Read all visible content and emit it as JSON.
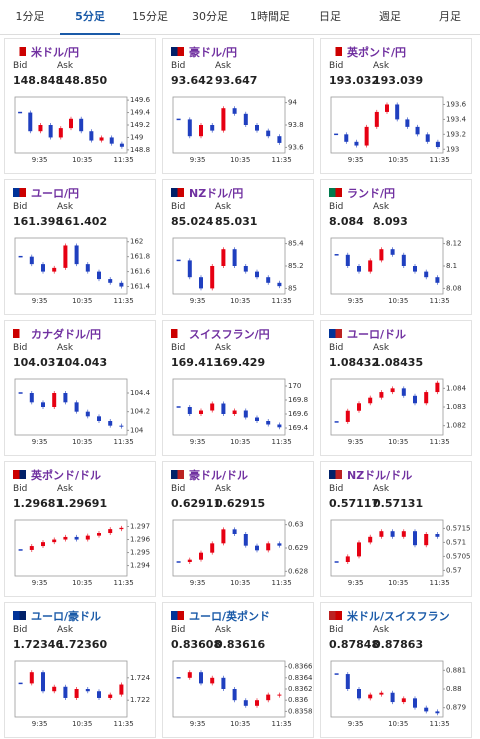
{
  "tabs": [
    "1分足",
    "5分足",
    "15分足",
    "30分足",
    "1時間足",
    "日足",
    "週足",
    "月足"
  ],
  "selected_tab": 1,
  "labels": {
    "bid": "Bid",
    "ask": "Ask"
  },
  "cards": [
    {
      "title": "米ドル/円",
      "title_color": "#7030a0",
      "bid": "148.848",
      "ask": "148.850",
      "chart": {
        "type": "candlestick",
        "closes": [
          149.4,
          149.1,
          149.2,
          149.0,
          149.15,
          149.3,
          149.1,
          148.95,
          149.0,
          148.9,
          148.85
        ],
        "ylim": [
          148.75,
          149.65
        ],
        "yticks": [
          148.8,
          149,
          149.2,
          149.4,
          149.6
        ],
        "xticks": [
          "9:35",
          "10:35",
          "11:35"
        ]
      }
    },
    {
      "title": "豪ドル/円",
      "title_color": "#7030a0",
      "bid": "93.642",
      "ask": "93.647",
      "chart": {
        "type": "candlestick",
        "closes": [
          93.85,
          93.7,
          93.8,
          93.75,
          93.95,
          93.9,
          93.8,
          93.75,
          93.7,
          93.64
        ],
        "ylim": [
          93.55,
          94.05
        ],
        "yticks": [
          93.6,
          93.8,
          94
        ],
        "xticks": [
          "9:35",
          "10:35",
          "11:35"
        ]
      }
    },
    {
      "title": "英ポンド/円",
      "title_color": "#7030a0",
      "bid": "193.032",
      "ask": "193.039",
      "chart": {
        "type": "candlestick",
        "closes": [
          193.2,
          193.1,
          193.05,
          193.3,
          193.5,
          193.6,
          193.4,
          193.3,
          193.2,
          193.1,
          193.03
        ],
        "ylim": [
          192.95,
          193.7
        ],
        "yticks": [
          193,
          193.2,
          193.4,
          193.6
        ],
        "xticks": [
          "9:35",
          "10:35",
          "11:35"
        ]
      }
    },
    {
      "title": "ユーロ/円",
      "title_color": "#7030a0",
      "bid": "161.398",
      "ask": "161.402",
      "chart": {
        "type": "candlestick",
        "closes": [
          161.8,
          161.7,
          161.6,
          161.65,
          161.95,
          161.7,
          161.6,
          161.5,
          161.45,
          161.4
        ],
        "ylim": [
          161.3,
          162.05
        ],
        "yticks": [
          161.4,
          161.6,
          161.8,
          162
        ],
        "xticks": [
          "9:35",
          "10:35",
          "11:35"
        ]
      }
    },
    {
      "title": "NZドル/円",
      "title_color": "#7030a0",
      "bid": "85.024",
      "ask": "85.031",
      "chart": {
        "type": "candlestick",
        "closes": [
          85.25,
          85.1,
          85.0,
          85.2,
          85.35,
          85.2,
          85.15,
          85.1,
          85.05,
          85.02
        ],
        "ylim": [
          84.95,
          85.45
        ],
        "yticks": [
          85,
          85.2,
          85.4
        ],
        "xticks": [
          "9:35",
          "10:35",
          "11:35"
        ]
      }
    },
    {
      "title": "ランド/円",
      "title_color": "#7030a0",
      "bid": "8.084",
      "ask": "8.093",
      "chart": {
        "type": "candlestick",
        "closes": [
          8.11,
          8.1,
          8.095,
          8.105,
          8.115,
          8.11,
          8.1,
          8.095,
          8.09,
          8.085
        ],
        "ylim": [
          8.075,
          8.125
        ],
        "yticks": [
          8.08,
          8.1,
          8.12
        ],
        "xticks": [
          "9:35",
          "10:35",
          "11:35"
        ]
      }
    },
    {
      "title": "カナダドル/円",
      "title_color": "#7030a0",
      "bid": "104.037",
      "ask": "104.043",
      "chart": {
        "type": "candlestick",
        "closes": [
          104.4,
          104.3,
          104.25,
          104.4,
          104.3,
          104.2,
          104.15,
          104.1,
          104.05,
          104.04
        ],
        "ylim": [
          103.95,
          104.55
        ],
        "yticks": [
          104,
          104.2,
          104.4
        ],
        "xticks": [
          "9:35",
          "10:35",
          "11:35"
        ]
      }
    },
    {
      "title": "スイスフラン/円",
      "title_color": "#7030a0",
      "bid": "169.413",
      "ask": "169.429",
      "chart": {
        "type": "candlestick",
        "closes": [
          169.7,
          169.6,
          169.65,
          169.75,
          169.6,
          169.65,
          169.55,
          169.5,
          169.45,
          169.41
        ],
        "ylim": [
          169.3,
          170.1
        ],
        "yticks": [
          169.4,
          169.6,
          169.8,
          170
        ],
        "xticks": [
          "9:35",
          "10:35",
          "11:35"
        ]
      }
    },
    {
      "title": "ユーロ/ドル",
      "title_color": "#7030a0",
      "bid": "1.08432",
      "ask": "1.08435",
      "chart": {
        "type": "candlestick",
        "closes": [
          1.0822,
          1.0828,
          1.0832,
          1.0835,
          1.0838,
          1.084,
          1.0836,
          1.0832,
          1.0838,
          1.0843
        ],
        "ylim": [
          1.0815,
          1.0845
        ],
        "yticks": [
          1.082,
          1.083,
          1.084
        ],
        "xticks": [
          "9:35",
          "10:35",
          "11:35"
        ]
      }
    },
    {
      "title": "英ポンド/ドル",
      "title_color": "#7030a0",
      "bid": "1.29681",
      "ask": "1.29691",
      "chart": {
        "type": "candlestick",
        "closes": [
          1.2952,
          1.2955,
          1.2958,
          1.296,
          1.2962,
          1.296,
          1.2963,
          1.2965,
          1.2968,
          1.2969
        ],
        "ylim": [
          1.2932,
          1.2975
        ],
        "yticks": [
          1.294,
          1.295,
          1.296,
          1.297
        ],
        "xticks": [
          "9:35",
          "10:35",
          "11:35"
        ]
      }
    },
    {
      "title": "豪ドル/ドル",
      "title_color": "#7030a0",
      "bid": "0.62911",
      "ask": "0.62915",
      "chart": {
        "type": "candlestick",
        "closes": [
          0.6284,
          0.6285,
          0.6288,
          0.6292,
          0.6298,
          0.6296,
          0.6291,
          0.6289,
          0.6292,
          0.6291
        ],
        "ylim": [
          0.6278,
          0.6302
        ],
        "yticks": [
          0.628,
          0.629,
          0.63
        ],
        "xticks": [
          "9:35",
          "10:35",
          "11:35"
        ]
      }
    },
    {
      "title": "NZドル/ドル",
      "title_color": "#7030a0",
      "bid": "0.57117",
      "ask": "0.57131",
      "chart": {
        "type": "candlestick",
        "closes": [
          0.5703,
          0.5705,
          0.571,
          0.5712,
          0.5714,
          0.5712,
          0.5714,
          0.5709,
          0.5713,
          0.5712
        ],
        "ylim": [
          0.5698,
          0.5718
        ],
        "yticks": [
          0.57,
          0.5705,
          0.571,
          0.5715
        ],
        "xticks": [
          "9:35",
          "10:35",
          "11:35"
        ]
      }
    },
    {
      "title": "ユーロ/豪ドル",
      "title_color": "#1a5aa8",
      "bid": "1.72346",
      "ask": "1.72360",
      "chart": {
        "type": "candlestick",
        "closes": [
          1.7235,
          1.7245,
          1.7228,
          1.7232,
          1.7222,
          1.723,
          1.7228,
          1.7222,
          1.7225,
          1.7234
        ],
        "ylim": [
          1.7205,
          1.7255
        ],
        "yticks": [
          1.722,
          1.724
        ],
        "xticks": [
          "9:35",
          "10:35",
          "11:35"
        ]
      }
    },
    {
      "title": "ユーロ/英ポンド",
      "title_color": "#1a5aa8",
      "bid": "0.83608",
      "ask": "0.83616",
      "chart": {
        "type": "candlestick",
        "closes": [
          0.8364,
          0.8365,
          0.8363,
          0.8364,
          0.8362,
          0.836,
          0.8359,
          0.836,
          0.8361,
          0.8361
        ],
        "ylim": [
          0.8357,
          0.8367
        ],
        "yticks": [
          0.8358,
          0.836,
          0.8362,
          0.8364,
          0.8366
        ],
        "xticks": [
          "9:35",
          "10:35",
          "11:35"
        ]
      }
    },
    {
      "title": "米ドル/スイスフラン",
      "title_color": "#1a5aa8",
      "bid": "0.87848",
      "ask": "0.87863",
      "chart": {
        "type": "candlestick",
        "closes": [
          0.8808,
          0.88,
          0.8795,
          0.8797,
          0.8798,
          0.8793,
          0.8795,
          0.879,
          0.8788,
          0.8787
        ],
        "ylim": [
          0.8785,
          0.8815
        ],
        "yticks": [
          0.879,
          0.88,
          0.881
        ],
        "xticks": [
          "9:35",
          "10:35",
          "11:35"
        ]
      }
    }
  ]
}
